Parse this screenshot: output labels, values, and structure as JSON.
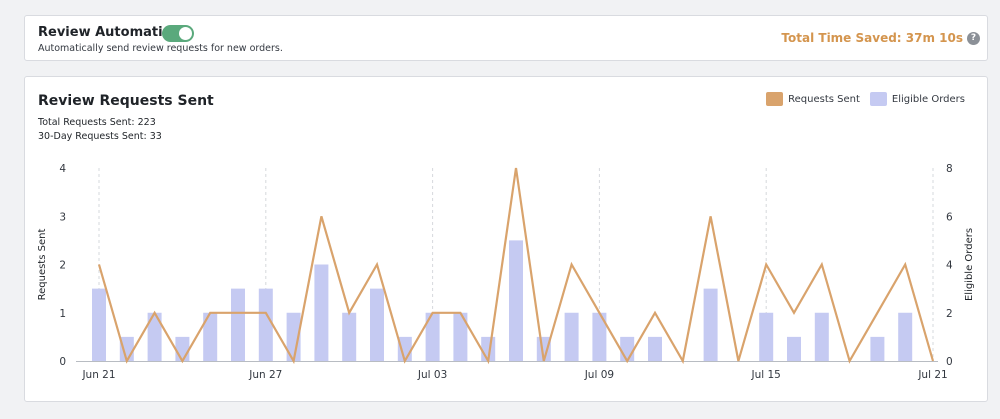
{
  "automation": {
    "title": "Review Automation",
    "description": "Automatically send review requests for new orders.",
    "toggle_on": true,
    "time_saved": "Total Time Saved: 37m 10s",
    "help_glyph": "?"
  },
  "chart_section": {
    "title": "Review Requests Sent",
    "total_requests": "Total Requests Sent: 223",
    "requests_30day": "30-Day Requests Sent: 33"
  },
  "colors": {
    "requests": "#d9a36c",
    "orders": "#c5caf2",
    "accent": "#d4954e",
    "toggle": "#5aa97c"
  },
  "chart_data": {
    "type": "bar",
    "x": [
      "Jun 21",
      "Jun 22",
      "Jun 23",
      "Jun 24",
      "Jun 25",
      "Jun 26",
      "Jun 27",
      "Jun 28",
      "Jun 29",
      "Jun 30",
      "Jul 01",
      "Jul 02",
      "Jul 03",
      "Jul 04",
      "Jul 05",
      "Jul 06",
      "Jul 07",
      "Jul 08",
      "Jul 09",
      "Jul 10",
      "Jul 11",
      "Jul 12",
      "Jul 13",
      "Jul 14",
      "Jul 15",
      "Jul 16",
      "Jul 17",
      "Jul 18",
      "Jul 19",
      "Jul 20",
      "Jul 21"
    ],
    "tick_labels": [
      "Jun 21",
      "Jun 27",
      "Jul 03",
      "Jul 09",
      "Jul 15",
      "Jul 21"
    ],
    "tick_indices": [
      0,
      6,
      12,
      18,
      24,
      30
    ],
    "series": [
      {
        "name": "Requests Sent",
        "type": "line",
        "axis": "left",
        "values": [
          2,
          0,
          1,
          0,
          1,
          1,
          1,
          0,
          3,
          1,
          2,
          0,
          1,
          1,
          0,
          4,
          0,
          2,
          1,
          0,
          1,
          0,
          3,
          0,
          2,
          1,
          2,
          0,
          1,
          2,
          0
        ]
      },
      {
        "name": "Eligible Orders",
        "type": "bar",
        "axis": "right",
        "values": [
          3,
          1,
          2,
          1,
          2,
          3,
          3,
          2,
          4,
          2,
          3,
          1,
          2,
          2,
          1,
          5,
          1,
          2,
          2,
          1,
          1,
          0,
          3,
          0,
          2,
          1,
          2,
          0,
          1,
          2,
          0
        ]
      }
    ],
    "ylabel_left": "Requests Sent",
    "ylabel_right": "Eligible Orders",
    "ylim_left": [
      0,
      4
    ],
    "ylim_right": [
      0,
      8
    ],
    "yticks_left": [
      "0",
      "1",
      "2",
      "3",
      "4"
    ],
    "yticks_right": [
      "0",
      "2",
      "4",
      "6",
      "8"
    ],
    "grid": "vertical-dashed",
    "legend_position": "top-right"
  }
}
